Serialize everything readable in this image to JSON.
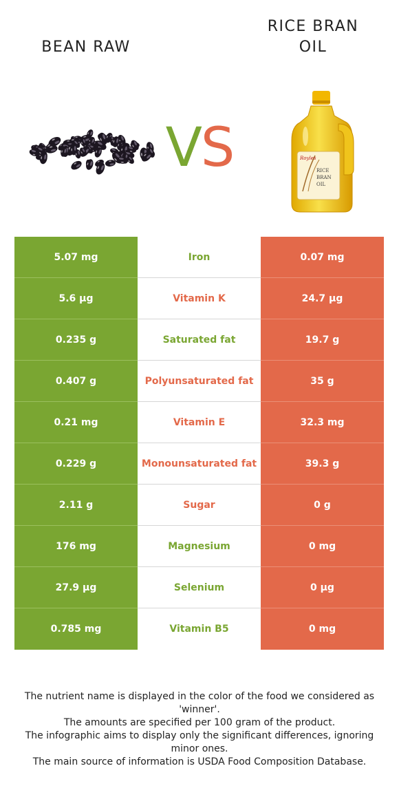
{
  "header": {
    "left_food": "BEAN RAW",
    "right_food_line1": "RICE BRAN",
    "right_food_line2": "OIL",
    "vs_v": "V",
    "vs_s": "S"
  },
  "bottle_label": {
    "brand": "Royles",
    "line1": "RICE",
    "line2": "BRAN",
    "line3": "OIL"
  },
  "colors": {
    "left_food": "#7aa632",
    "right_food": "#e3694a"
  },
  "rows": [
    {
      "nutrient": "Iron",
      "left": "5.07 mg",
      "right": "0.07 mg",
      "winner": "left"
    },
    {
      "nutrient": "Vitamin K",
      "left": "5.6 µg",
      "right": "24.7 µg",
      "winner": "right"
    },
    {
      "nutrient": "Saturated fat",
      "left": "0.235 g",
      "right": "19.7 g",
      "winner": "left"
    },
    {
      "nutrient": "Polyunsaturated fat",
      "left": "0.407 g",
      "right": "35 g",
      "winner": "right"
    },
    {
      "nutrient": "Vitamin E",
      "left": "0.21 mg",
      "right": "32.3 mg",
      "winner": "right"
    },
    {
      "nutrient": "Monounsaturated fat",
      "left": "0.229 g",
      "right": "39.3 g",
      "winner": "right"
    },
    {
      "nutrient": "Sugar",
      "left": "2.11 g",
      "right": "0 g",
      "winner": "right"
    },
    {
      "nutrient": "Magnesium",
      "left": "176 mg",
      "right": "0 mg",
      "winner": "left"
    },
    {
      "nutrient": "Selenium",
      "left": "27.9 µg",
      "right": "0 µg",
      "winner": "left"
    },
    {
      "nutrient": "Vitamin B5",
      "left": "0.785 mg",
      "right": "0 mg",
      "winner": "left"
    }
  ],
  "footnotes": [
    "The nutrient name is displayed in the color of the food we considered as 'winner'.",
    "The amounts are specified per 100 gram of the product.",
    "The infographic aims to display only the significant differences, ignoring minor ones.",
    "The main source of information is USDA Food Composition Database."
  ]
}
